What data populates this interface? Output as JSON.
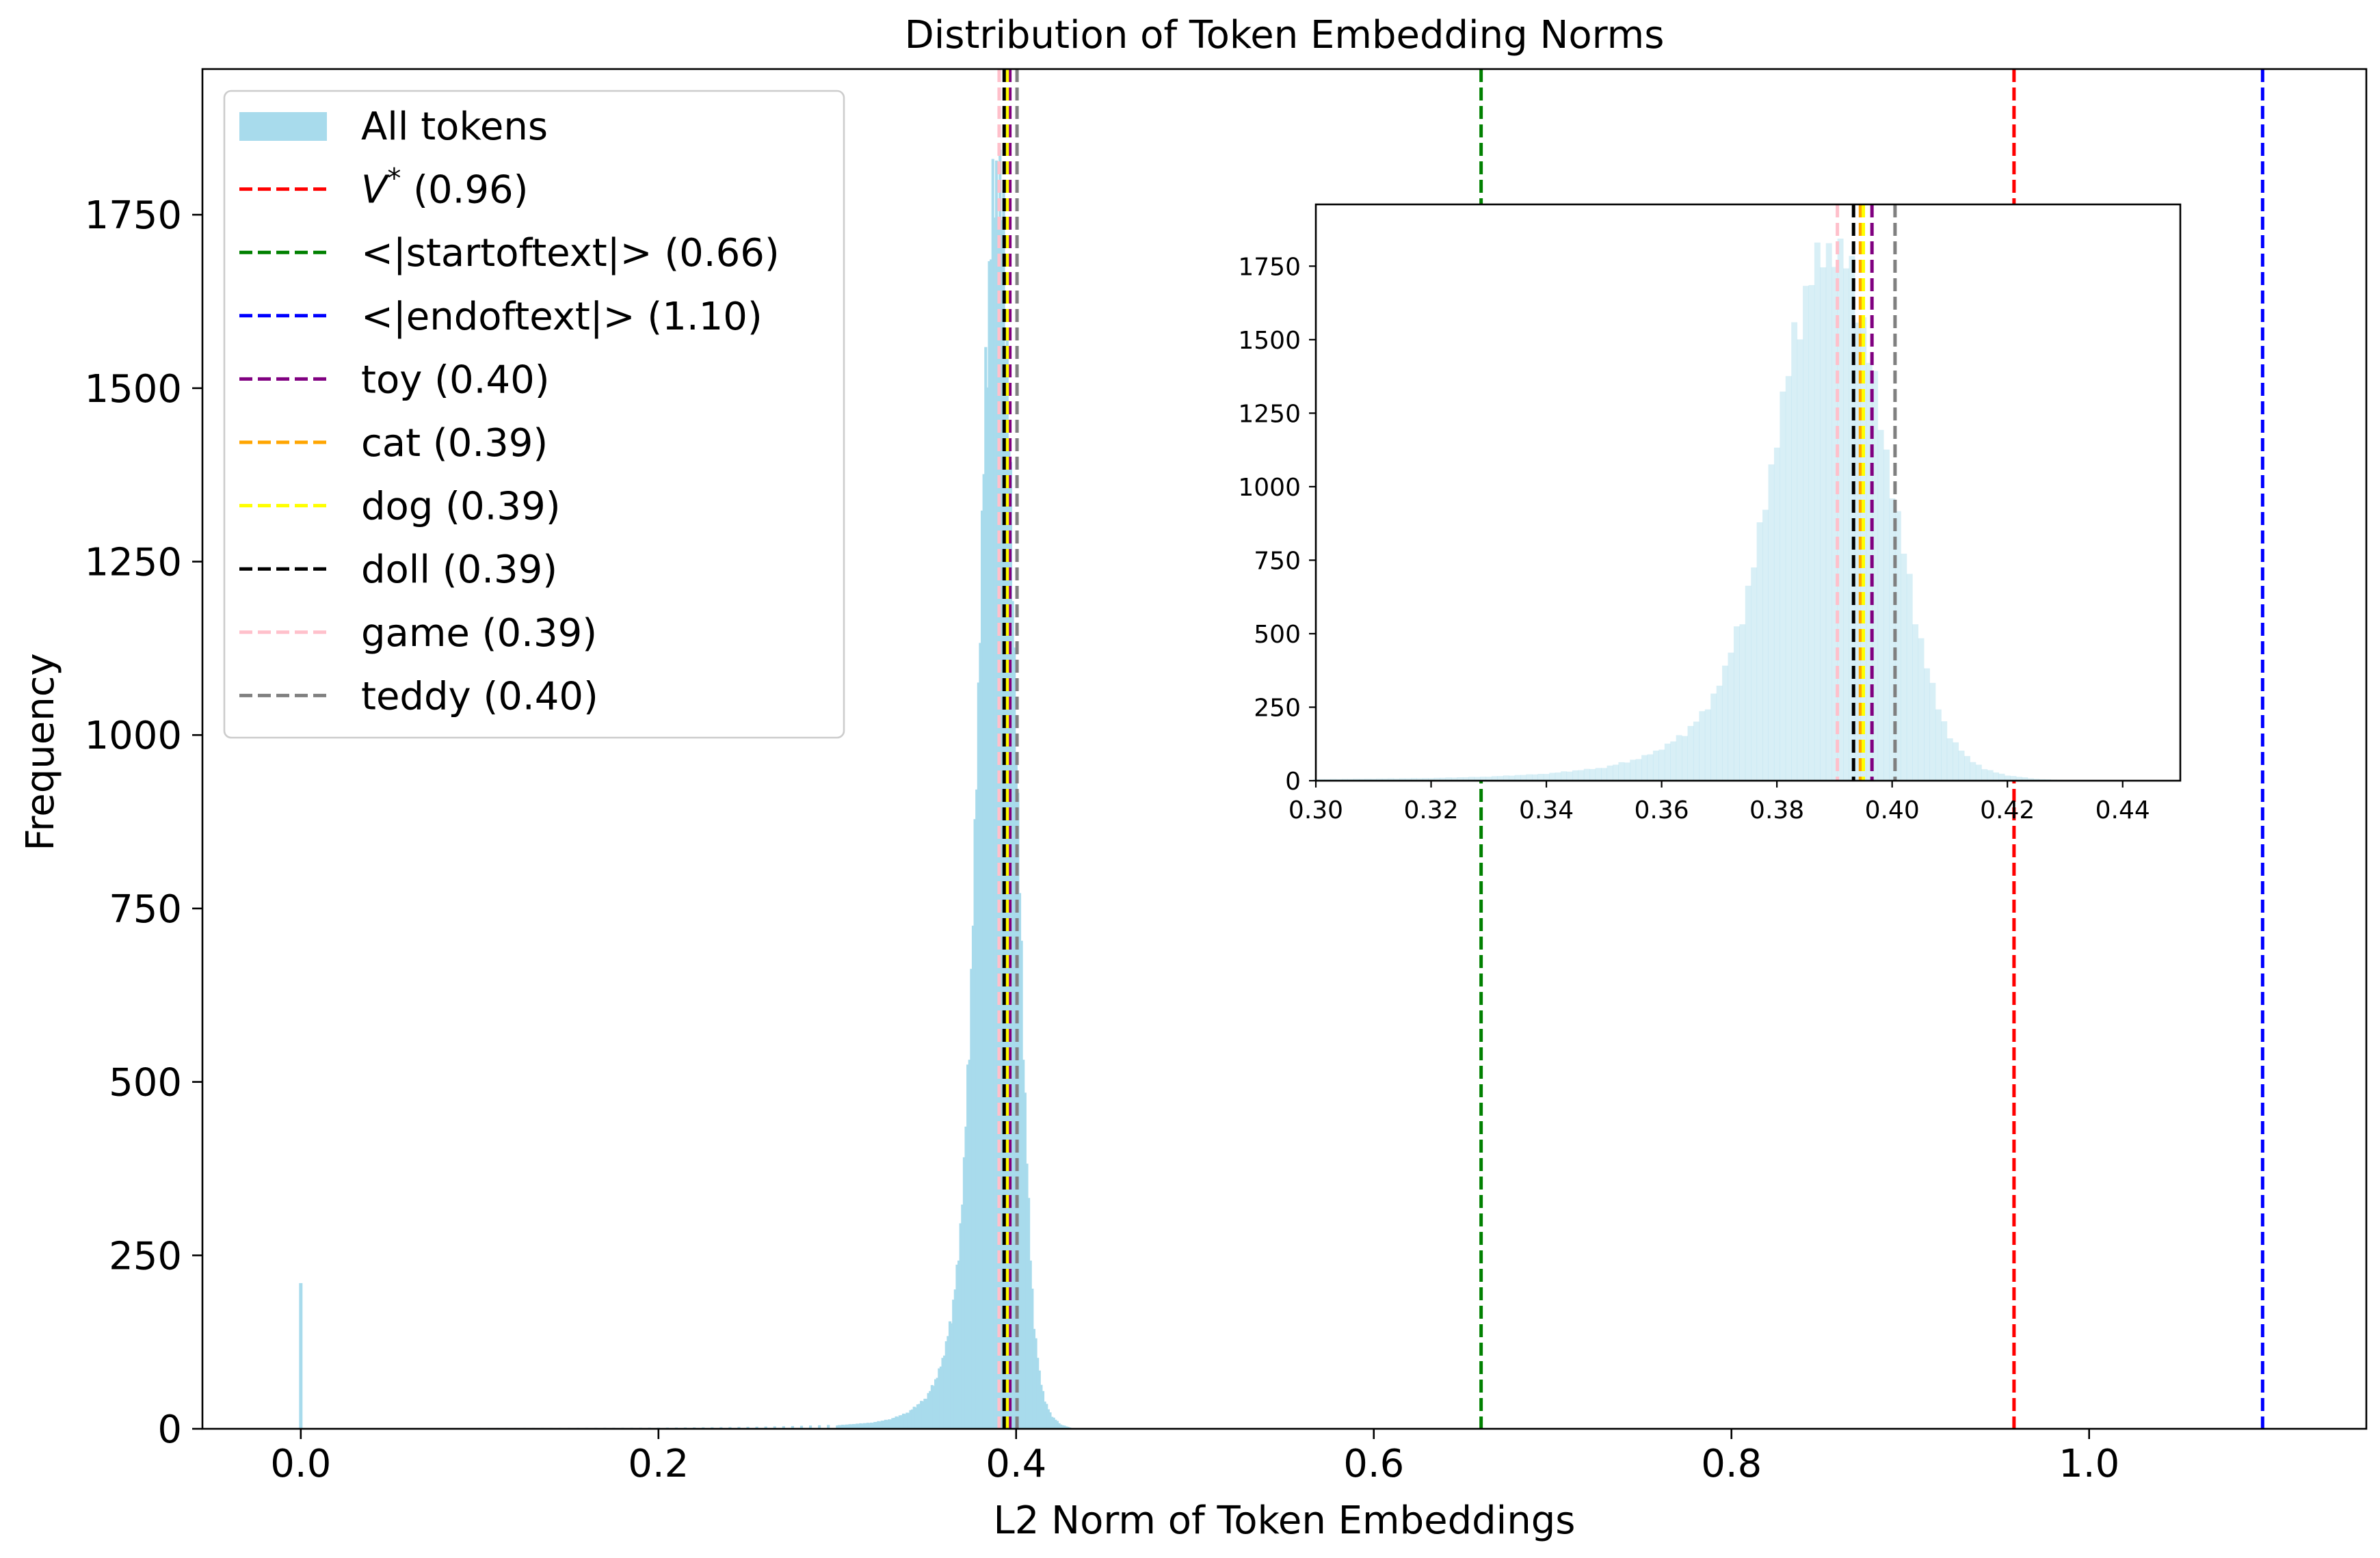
{
  "chart_data": {
    "type": "histogram",
    "title": "Distribution of Token Embedding Norms",
    "xlabel": "L2 Norm of Token Embeddings",
    "ylabel": "Frequency",
    "xlim": [
      -0.055,
      1.155
    ],
    "ylim": [
      0,
      1960
    ],
    "xticks": [
      0.0,
      0.2,
      0.4,
      0.6,
      0.8,
      1.0
    ],
    "xtick_labels": [
      "0.0",
      "0.2",
      "0.4",
      "0.6",
      "0.8",
      "1.0"
    ],
    "yticks": [
      0,
      250,
      500,
      750,
      1000,
      1250,
      1500,
      1750
    ],
    "ytick_labels": [
      "0",
      "250",
      "500",
      "750",
      "1000",
      "1250",
      "1500",
      "1750"
    ],
    "histogram": {
      "name": "All tokens",
      "color": "#a8dbec",
      "bin_width": 0.001,
      "bins": [
        {
          "x": 0.0,
          "count": 210
        },
        {
          "x": 0.3,
          "count": 5
        },
        {
          "x": 0.31,
          "count": 7
        },
        {
          "x": 0.32,
          "count": 9
        },
        {
          "x": 0.33,
          "count": 14
        },
        {
          "x": 0.34,
          "count": 24
        },
        {
          "x": 0.35,
          "count": 45
        },
        {
          "x": 0.356,
          "count": 75
        },
        {
          "x": 0.36,
          "count": 110
        },
        {
          "x": 0.364,
          "count": 160
        },
        {
          "x": 0.368,
          "count": 250
        },
        {
          "x": 0.371,
          "count": 380
        },
        {
          "x": 0.374,
          "count": 560
        },
        {
          "x": 0.376,
          "count": 740
        },
        {
          "x": 0.378,
          "count": 950
        },
        {
          "x": 0.38,
          "count": 1180
        },
        {
          "x": 0.382,
          "count": 1390
        },
        {
          "x": 0.384,
          "count": 1580
        },
        {
          "x": 0.386,
          "count": 1720
        },
        {
          "x": 0.388,
          "count": 1800
        },
        {
          "x": 0.39,
          "count": 1820
        },
        {
          "x": 0.392,
          "count": 1760
        },
        {
          "x": 0.394,
          "count": 1640
        },
        {
          "x": 0.396,
          "count": 1450
        },
        {
          "x": 0.398,
          "count": 1230
        },
        {
          "x": 0.4,
          "count": 1000
        },
        {
          "x": 0.402,
          "count": 780
        },
        {
          "x": 0.404,
          "count": 560
        },
        {
          "x": 0.406,
          "count": 390
        },
        {
          "x": 0.408,
          "count": 250
        },
        {
          "x": 0.41,
          "count": 150
        },
        {
          "x": 0.413,
          "count": 80
        },
        {
          "x": 0.416,
          "count": 40
        },
        {
          "x": 0.42,
          "count": 18
        },
        {
          "x": 0.425,
          "count": 6
        },
        {
          "x": 0.43,
          "count": 2
        }
      ]
    },
    "reference_lines": [
      {
        "label": "V* (0.96)",
        "value": 0.958,
        "color": "#ff0000"
      },
      {
        "label": "<|startoftext|> (0.66)",
        "value": 0.66,
        "color": "#008000"
      },
      {
        "label": "<|endoftext|> (1.10)",
        "value": 1.097,
        "color": "#0000ff"
      },
      {
        "label": "toy (0.40)",
        "value": 0.3965,
        "color": "#800080"
      },
      {
        "label": "cat (0.39)",
        "value": 0.3945,
        "color": "#ffa500"
      },
      {
        "label": "dog (0.39)",
        "value": 0.395,
        "color": "#ffff00"
      },
      {
        "label": "doll (0.39)",
        "value": 0.3933,
        "color": "#000000"
      },
      {
        "label": "game (0.39)",
        "value": 0.3905,
        "color": "#ffc0cb"
      },
      {
        "label": "teddy (0.40)",
        "value": 0.4005,
        "color": "#808080"
      }
    ],
    "legend": {
      "placement": "top-left",
      "entries": [
        {
          "text": "All tokens",
          "kind": "patch",
          "color": "#a8dbec"
        },
        {
          "text": "V",
          "sup": "*",
          "rest": " (0.96)",
          "kind": "line",
          "color": "#ff0000"
        },
        {
          "text": "<|startoftext|> (0.66)",
          "kind": "line",
          "color": "#008000"
        },
        {
          "text": "<|endoftext|> (1.10)",
          "kind": "line",
          "color": "#0000ff"
        },
        {
          "text": "toy (0.40)",
          "kind": "line",
          "color": "#800080"
        },
        {
          "text": "cat (0.39)",
          "kind": "line",
          "color": "#ffa500"
        },
        {
          "text": "dog (0.39)",
          "kind": "line",
          "color": "#ffff00"
        },
        {
          "text": "doll (0.39)",
          "kind": "line",
          "color": "#000000"
        },
        {
          "text": "game (0.39)",
          "kind": "line",
          "color": "#ffc0cb"
        },
        {
          "text": "teddy (0.40)",
          "kind": "line",
          "color": "#808080"
        }
      ]
    },
    "inset": {
      "placement": "upper-right",
      "xlim": [
        0.3,
        0.45
      ],
      "ylim": [
        0,
        1960
      ],
      "xticks": [
        0.3,
        0.32,
        0.34,
        0.36,
        0.38,
        0.4,
        0.42,
        0.44
      ],
      "xtick_labels": [
        "0.30",
        "0.32",
        "0.34",
        "0.36",
        "0.38",
        "0.40",
        "0.42",
        "0.44"
      ],
      "yticks": [
        0,
        250,
        500,
        750,
        1000,
        1250,
        1500,
        1750
      ],
      "ytick_labels": [
        "0",
        "250",
        "500",
        "750",
        "1000",
        "1250",
        "1500",
        "1750"
      ],
      "lines": [
        "toy (0.40)",
        "cat (0.39)",
        "dog (0.39)",
        "doll (0.39)",
        "game (0.39)",
        "teddy (0.40)"
      ]
    }
  }
}
